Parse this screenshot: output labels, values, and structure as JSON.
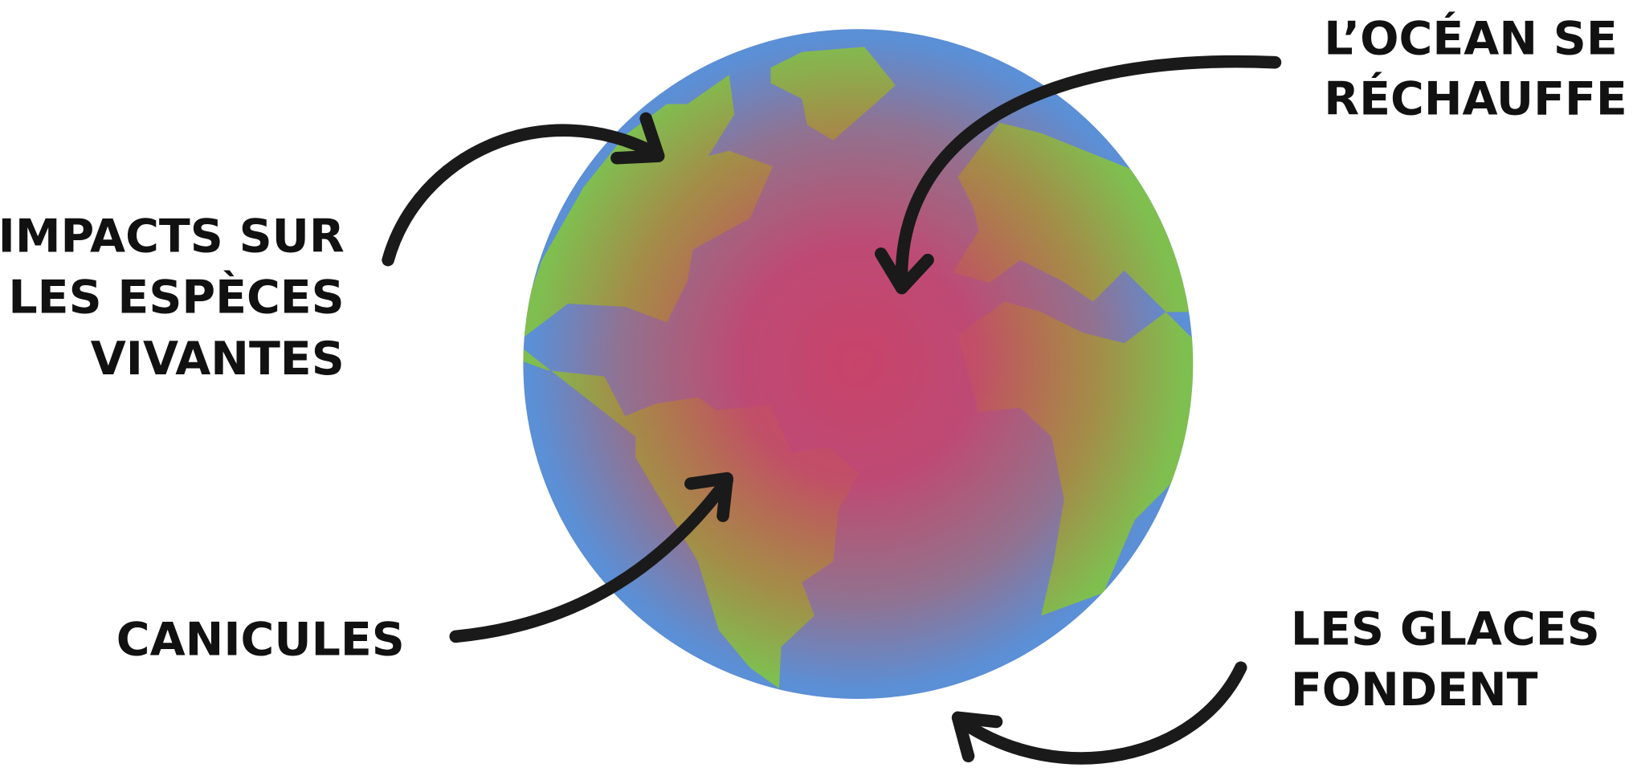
{
  "labels": [
    {
      "lines": [
        "IMPACTS SUR",
        "LES ESPÈCES",
        "VIVANTES"
      ]
    },
    {
      "lines": [
        "L’OCÉAN SE",
        "RÉCHAUFFE"
      ]
    },
    {
      "lines": [
        "CANICULES"
      ]
    },
    {
      "lines": [
        "LES GLACES",
        "FONDENT"
      ]
    }
  ]
}
